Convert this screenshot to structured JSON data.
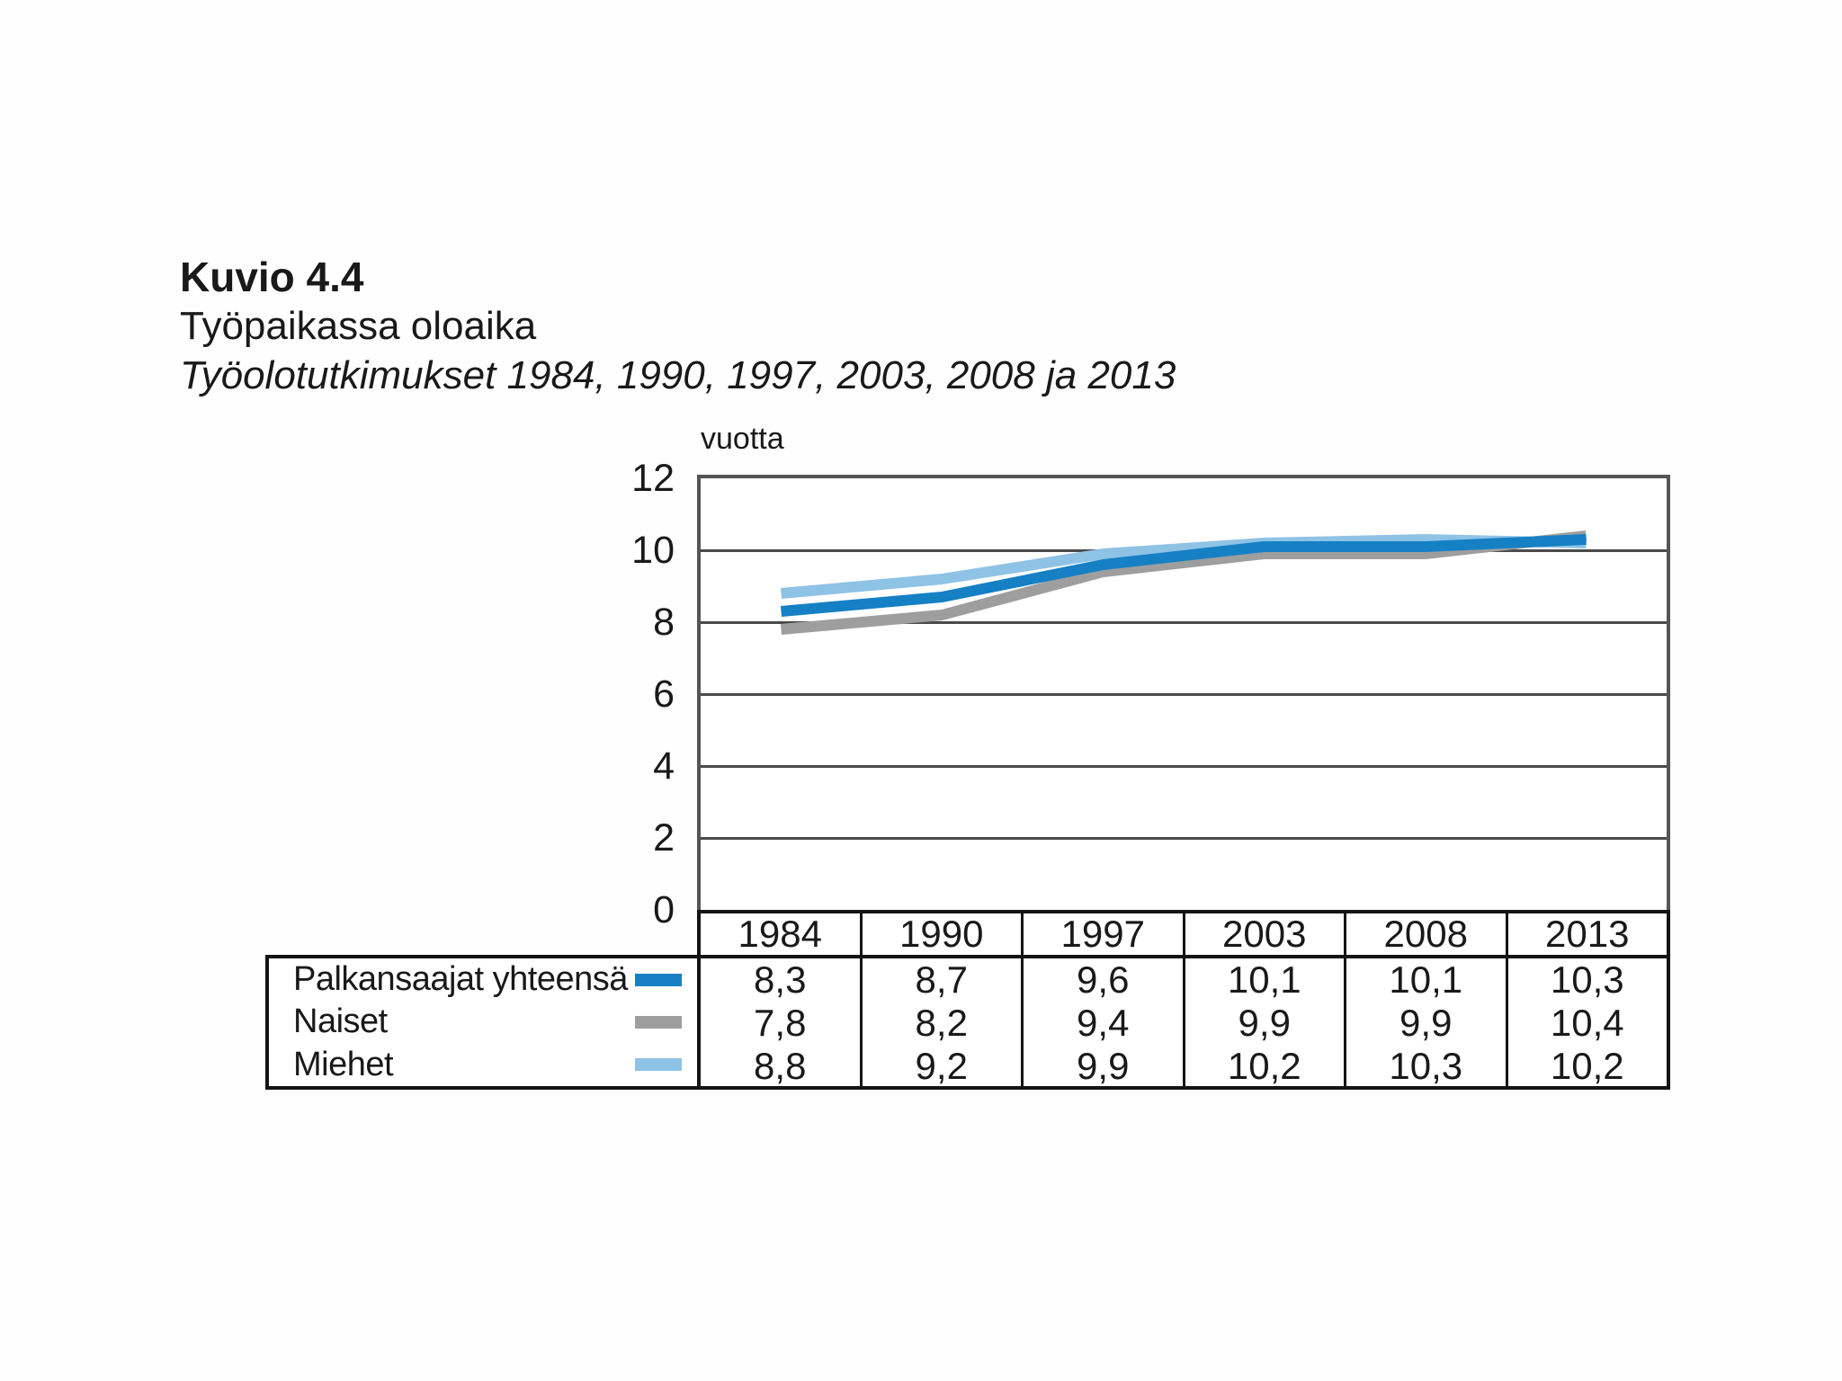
{
  "figure": {
    "label": "Kuvio 4.4",
    "title": "Työpaikassa oloaika",
    "subtitle": "Työolotutkimukset 1984, 1990, 1997, 2003, 2008 ja 2013"
  },
  "chart_data": {
    "type": "line",
    "title": "Työpaikassa oloaika",
    "ylabel": "vuotta",
    "ylim": [
      0,
      12
    ],
    "yticks": [
      12,
      10,
      8,
      6,
      4,
      2,
      0
    ],
    "grid": true,
    "legend_position": "table-left-below",
    "categories": [
      "1984",
      "1990",
      "1997",
      "2003",
      "2008",
      "2013"
    ],
    "series": [
      {
        "name": "Palkansaajat yhteensä",
        "color": "#1580c4",
        "values": [
          8.3,
          8.7,
          9.6,
          10.1,
          10.1,
          10.3
        ]
      },
      {
        "name": "Naiset",
        "color": "#9e9e9e",
        "values": [
          7.8,
          8.2,
          9.4,
          9.9,
          9.9,
          10.4
        ]
      },
      {
        "name": "Miehet",
        "color": "#8ec3e6",
        "values": [
          8.8,
          9.2,
          9.9,
          10.2,
          10.3,
          10.2
        ]
      }
    ]
  },
  "table": {
    "column_headers": [
      "1984",
      "1990",
      "1997",
      "2003",
      "2008",
      "2013"
    ],
    "rows": [
      {
        "label": "Palkansaajat yhteensä",
        "values": [
          "8,3",
          "8,7",
          "9,6",
          "10,1",
          "10,1",
          "10,3"
        ]
      },
      {
        "label": "Naiset",
        "values": [
          "7,8",
          "8,2",
          "9,4",
          "9,9",
          "9,9",
          "10,4"
        ]
      },
      {
        "label": "Miehet",
        "values": [
          "8,8",
          "9,2",
          "9,9",
          "10,2",
          "10,3",
          "10,2"
        ]
      }
    ]
  },
  "colors": {
    "text": "#191919",
    "gridline": "#4a4a4a",
    "plot_border": "#555555",
    "table_border": "#141414"
  }
}
